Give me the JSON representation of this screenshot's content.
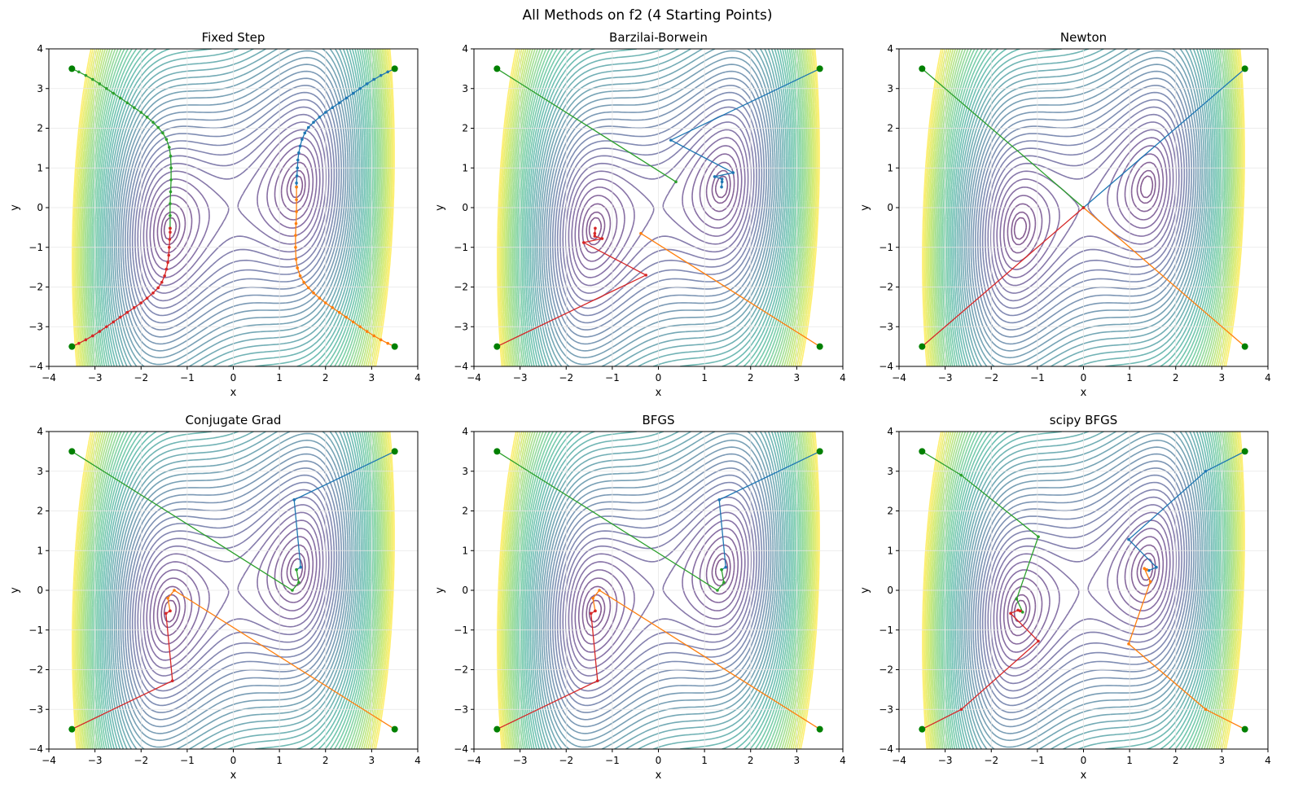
{
  "figure_title": "All Methods on f2 (4 Starting Points)",
  "colors": {
    "series": [
      "#1f77b4",
      "#ff7f0e",
      "#2ca02c",
      "#d62728"
    ],
    "start_marker": "#008000",
    "grid": "#e6e6e6"
  },
  "chart_data": [
    {
      "type": "line",
      "title": "Fixed Step",
      "xlabel": "x",
      "ylabel": "y",
      "xlim": [
        -4,
        4
      ],
      "ylim": [
        -4,
        4
      ],
      "xticks": [
        -4,
        -3,
        -2,
        -1,
        0,
        1,
        2,
        3,
        4
      ],
      "yticks": [
        -4,
        -3,
        -2,
        -1,
        0,
        1,
        2,
        3,
        4
      ],
      "grid": true,
      "background": "contour",
      "starts": [
        [
          3.5,
          3.5
        ],
        [
          3.5,
          -3.5
        ],
        [
          -3.5,
          3.5
        ],
        [
          -3.5,
          -3.5
        ]
      ],
      "series": [
        {
          "points": [
            [
              3.5,
              3.5
            ],
            [
              3.35,
              3.42
            ],
            [
              3.2,
              3.33
            ],
            [
              3.05,
              3.23
            ],
            [
              2.9,
              3.12
            ],
            [
              2.75,
              3.0
            ],
            [
              2.6,
              2.88
            ],
            [
              2.45,
              2.76
            ],
            [
              2.3,
              2.64
            ],
            [
              2.15,
              2.52
            ],
            [
              2.0,
              2.4
            ],
            [
              1.87,
              2.28
            ],
            [
              1.74,
              2.15
            ],
            [
              1.63,
              2.02
            ],
            [
              1.55,
              1.88
            ],
            [
              1.49,
              1.72
            ],
            [
              1.45,
              1.55
            ],
            [
              1.42,
              1.38
            ],
            [
              1.4,
              1.2
            ],
            [
              1.39,
              1.0
            ],
            [
              1.38,
              0.8
            ],
            [
              1.37,
              0.62
            ],
            [
              1.37,
              0.52
            ]
          ]
        },
        {
          "points": [
            [
              3.5,
              -3.5
            ],
            [
              3.35,
              -3.42
            ],
            [
              3.2,
              -3.33
            ],
            [
              3.05,
              -3.23
            ],
            [
              2.9,
              -3.12
            ],
            [
              2.75,
              -3.0
            ],
            [
              2.6,
              -2.88
            ],
            [
              2.45,
              -2.76
            ],
            [
              2.3,
              -2.64
            ],
            [
              2.15,
              -2.52
            ],
            [
              2.0,
              -2.4
            ],
            [
              1.87,
              -2.28
            ],
            [
              1.74,
              -2.15
            ],
            [
              1.63,
              -2.02
            ],
            [
              1.53,
              -1.88
            ],
            [
              1.45,
              -1.72
            ],
            [
              1.39,
              -1.52
            ],
            [
              1.36,
              -1.3
            ],
            [
              1.35,
              -1.0
            ],
            [
              1.35,
              -0.7
            ],
            [
              1.36,
              -0.4
            ],
            [
              1.37,
              -0.1
            ],
            [
              1.37,
              0.2
            ],
            [
              1.37,
              0.52
            ]
          ]
        },
        {
          "points": [
            [
              -3.5,
              3.5
            ],
            [
              -3.35,
              3.42
            ],
            [
              -3.2,
              3.33
            ],
            [
              -3.05,
              3.23
            ],
            [
              -2.9,
              3.12
            ],
            [
              -2.75,
              3.0
            ],
            [
              -2.6,
              2.88
            ],
            [
              -2.45,
              2.76
            ],
            [
              -2.3,
              2.64
            ],
            [
              -2.15,
              2.52
            ],
            [
              -2.0,
              2.4
            ],
            [
              -1.87,
              2.28
            ],
            [
              -1.74,
              2.15
            ],
            [
              -1.63,
              2.02
            ],
            [
              -1.53,
              1.88
            ],
            [
              -1.45,
              1.72
            ],
            [
              -1.39,
              1.52
            ],
            [
              -1.36,
              1.3
            ],
            [
              -1.35,
              1.0
            ],
            [
              -1.35,
              0.7
            ],
            [
              -1.36,
              0.4
            ],
            [
              -1.37,
              0.1
            ],
            [
              -1.37,
              -0.2
            ],
            [
              -1.37,
              -0.52
            ]
          ]
        },
        {
          "points": [
            [
              -3.5,
              -3.5
            ],
            [
              -3.35,
              -3.42
            ],
            [
              -3.2,
              -3.33
            ],
            [
              -3.05,
              -3.23
            ],
            [
              -2.9,
              -3.12
            ],
            [
              -2.75,
              -3.0
            ],
            [
              -2.6,
              -2.88
            ],
            [
              -2.45,
              -2.76
            ],
            [
              -2.3,
              -2.64
            ],
            [
              -2.15,
              -2.52
            ],
            [
              -2.0,
              -2.4
            ],
            [
              -1.87,
              -2.28
            ],
            [
              -1.74,
              -2.15
            ],
            [
              -1.63,
              -2.02
            ],
            [
              -1.55,
              -1.88
            ],
            [
              -1.49,
              -1.72
            ],
            [
              -1.45,
              -1.55
            ],
            [
              -1.42,
              -1.38
            ],
            [
              -1.4,
              -1.2
            ],
            [
              -1.39,
              -1.0
            ],
            [
              -1.38,
              -0.8
            ],
            [
              -1.37,
              -0.62
            ],
            [
              -1.37,
              -0.52
            ]
          ]
        }
      ]
    },
    {
      "type": "line",
      "title": "Barzilai-Borwein",
      "xlabel": "x",
      "ylabel": "y",
      "xlim": [
        -4,
        4
      ],
      "ylim": [
        -4,
        4
      ],
      "xticks": [
        -4,
        -3,
        -2,
        -1,
        0,
        1,
        2,
        3,
        4
      ],
      "yticks": [
        -4,
        -3,
        -2,
        -1,
        0,
        1,
        2,
        3,
        4
      ],
      "grid": true,
      "background": "contour",
      "starts": [
        [
          3.5,
          3.5
        ],
        [
          3.5,
          -3.5
        ],
        [
          -3.5,
          3.5
        ],
        [
          -3.5,
          -3.5
        ]
      ],
      "series": [
        {
          "points": [
            [
              3.5,
              3.5
            ],
            [
              0.27,
              1.7
            ],
            [
              1.62,
              0.88
            ],
            [
              1.22,
              0.78
            ],
            [
              1.38,
              0.72
            ],
            [
              1.38,
              0.65
            ],
            [
              1.37,
              0.52
            ]
          ]
        },
        {
          "points": [
            [
              3.5,
              -3.5
            ],
            [
              -0.38,
              -0.65
            ]
          ]
        },
        {
          "points": [
            [
              -3.5,
              3.5
            ],
            [
              0.38,
              0.65
            ]
          ]
        },
        {
          "points": [
            [
              -3.5,
              -3.5
            ],
            [
              -0.27,
              -1.7
            ],
            [
              -1.62,
              -0.88
            ],
            [
              -1.22,
              -0.78
            ],
            [
              -1.38,
              -0.72
            ],
            [
              -1.38,
              -0.65
            ],
            [
              -1.37,
              -0.52
            ]
          ]
        }
      ]
    },
    {
      "type": "line",
      "title": "Newton",
      "xlabel": "x",
      "ylabel": "y",
      "xlim": [
        -4,
        4
      ],
      "ylim": [
        -4,
        4
      ],
      "xticks": [
        -4,
        -3,
        -2,
        -1,
        0,
        1,
        2,
        3,
        4
      ],
      "yticks": [
        -4,
        -3,
        -2,
        -1,
        0,
        1,
        2,
        3,
        4
      ],
      "grid": true,
      "background": "contour",
      "starts": [
        [
          3.5,
          3.5
        ],
        [
          3.5,
          -3.5
        ],
        [
          -3.5,
          3.5
        ],
        [
          -3.5,
          -3.5
        ]
      ],
      "series": [
        {
          "points": [
            [
              3.5,
              3.5
            ],
            [
              0,
              0
            ]
          ]
        },
        {
          "points": [
            [
              3.5,
              -3.5
            ],
            [
              0,
              0
            ]
          ]
        },
        {
          "points": [
            [
              -3.5,
              3.5
            ],
            [
              0,
              0
            ]
          ]
        },
        {
          "points": [
            [
              -3.5,
              -3.5
            ],
            [
              0,
              0
            ]
          ]
        }
      ]
    },
    {
      "type": "line",
      "title": "Conjugate Grad",
      "xlabel": "x",
      "ylabel": "y",
      "xlim": [
        -4,
        4
      ],
      "ylim": [
        -4,
        4
      ],
      "xticks": [
        -4,
        -3,
        -2,
        -1,
        0,
        1,
        2,
        3,
        4
      ],
      "yticks": [
        -4,
        -3,
        -2,
        -1,
        0,
        1,
        2,
        3,
        4
      ],
      "grid": true,
      "background": "contour",
      "starts": [
        [
          3.5,
          3.5
        ],
        [
          3.5,
          -3.5
        ],
        [
          -3.5,
          3.5
        ],
        [
          -3.5,
          -3.5
        ]
      ],
      "series": [
        {
          "points": [
            [
              3.5,
              3.5
            ],
            [
              1.32,
              2.28
            ],
            [
              1.46,
              0.58
            ],
            [
              1.37,
              0.52
            ]
          ]
        },
        {
          "points": [
            [
              3.5,
              -3.5
            ],
            [
              -1.28,
              0.0
            ],
            [
              -1.42,
              -0.2
            ],
            [
              -1.37,
              -0.52
            ]
          ]
        },
        {
          "points": [
            [
              -3.5,
              3.5
            ],
            [
              1.28,
              0.0
            ],
            [
              1.42,
              0.2
            ],
            [
              1.37,
              0.52
            ]
          ]
        },
        {
          "points": [
            [
              -3.5,
              -3.5
            ],
            [
              -1.32,
              -2.28
            ],
            [
              -1.46,
              -0.58
            ],
            [
              -1.37,
              -0.52
            ]
          ]
        }
      ]
    },
    {
      "type": "line",
      "title": "BFGS",
      "xlabel": "x",
      "ylabel": "y",
      "xlim": [
        -4,
        4
      ],
      "ylim": [
        -4,
        4
      ],
      "xticks": [
        -4,
        -3,
        -2,
        -1,
        0,
        1,
        2,
        3,
        4
      ],
      "yticks": [
        -4,
        -3,
        -2,
        -1,
        0,
        1,
        2,
        3,
        4
      ],
      "grid": true,
      "background": "contour",
      "starts": [
        [
          3.5,
          3.5
        ],
        [
          3.5,
          -3.5
        ],
        [
          -3.5,
          3.5
        ],
        [
          -3.5,
          -3.5
        ]
      ],
      "series": [
        {
          "points": [
            [
              3.5,
              3.5
            ],
            [
              1.32,
              2.28
            ],
            [
              1.46,
              0.58
            ],
            [
              1.37,
              0.52
            ]
          ]
        },
        {
          "points": [
            [
              3.5,
              -3.5
            ],
            [
              -1.28,
              0.0
            ],
            [
              -1.42,
              -0.2
            ],
            [
              -1.37,
              -0.52
            ]
          ]
        },
        {
          "points": [
            [
              -3.5,
              3.5
            ],
            [
              1.28,
              0.0
            ],
            [
              1.42,
              0.2
            ],
            [
              1.37,
              0.52
            ]
          ]
        },
        {
          "points": [
            [
              -3.5,
              -3.5
            ],
            [
              -1.32,
              -2.28
            ],
            [
              -1.46,
              -0.58
            ],
            [
              -1.37,
              -0.52
            ]
          ]
        }
      ]
    },
    {
      "type": "line",
      "title": "scipy BFGS",
      "xlabel": "x",
      "ylabel": "y",
      "xlim": [
        -4,
        4
      ],
      "ylim": [
        -4,
        4
      ],
      "xticks": [
        -4,
        -3,
        -2,
        -1,
        0,
        1,
        2,
        3,
        4
      ],
      "yticks": [
        -4,
        -3,
        -2,
        -1,
        0,
        1,
        2,
        3,
        4
      ],
      "grid": true,
      "background": "contour",
      "starts": [
        [
          3.5,
          3.5
        ],
        [
          3.5,
          -3.5
        ],
        [
          -3.5,
          3.5
        ],
        [
          -3.5,
          -3.5
        ]
      ],
      "series": [
        {
          "points": [
            [
              3.5,
              3.5
            ],
            [
              2.65,
              3.0
            ],
            [
              0.98,
              1.28
            ],
            [
              1.58,
              0.58
            ],
            [
              1.42,
              0.5
            ],
            [
              1.37,
              0.52
            ]
          ]
        },
        {
          "points": [
            [
              3.5,
              -3.5
            ],
            [
              2.65,
              -3.0
            ],
            [
              0.98,
              -1.35
            ],
            [
              1.45,
              0.22
            ],
            [
              1.32,
              0.55
            ],
            [
              1.37,
              0.52
            ]
          ]
        },
        {
          "points": [
            [
              -3.5,
              3.5
            ],
            [
              -2.65,
              2.9
            ],
            [
              -0.98,
              1.35
            ],
            [
              -1.45,
              -0.22
            ],
            [
              -1.32,
              -0.55
            ],
            [
              -1.37,
              -0.52
            ]
          ]
        },
        {
          "points": [
            [
              -3.5,
              -3.5
            ],
            [
              -2.65,
              -3.0
            ],
            [
              -0.98,
              -1.28
            ],
            [
              -1.58,
              -0.58
            ],
            [
              -1.42,
              -0.5
            ],
            [
              -1.37,
              -0.52
            ]
          ]
        }
      ]
    }
  ]
}
